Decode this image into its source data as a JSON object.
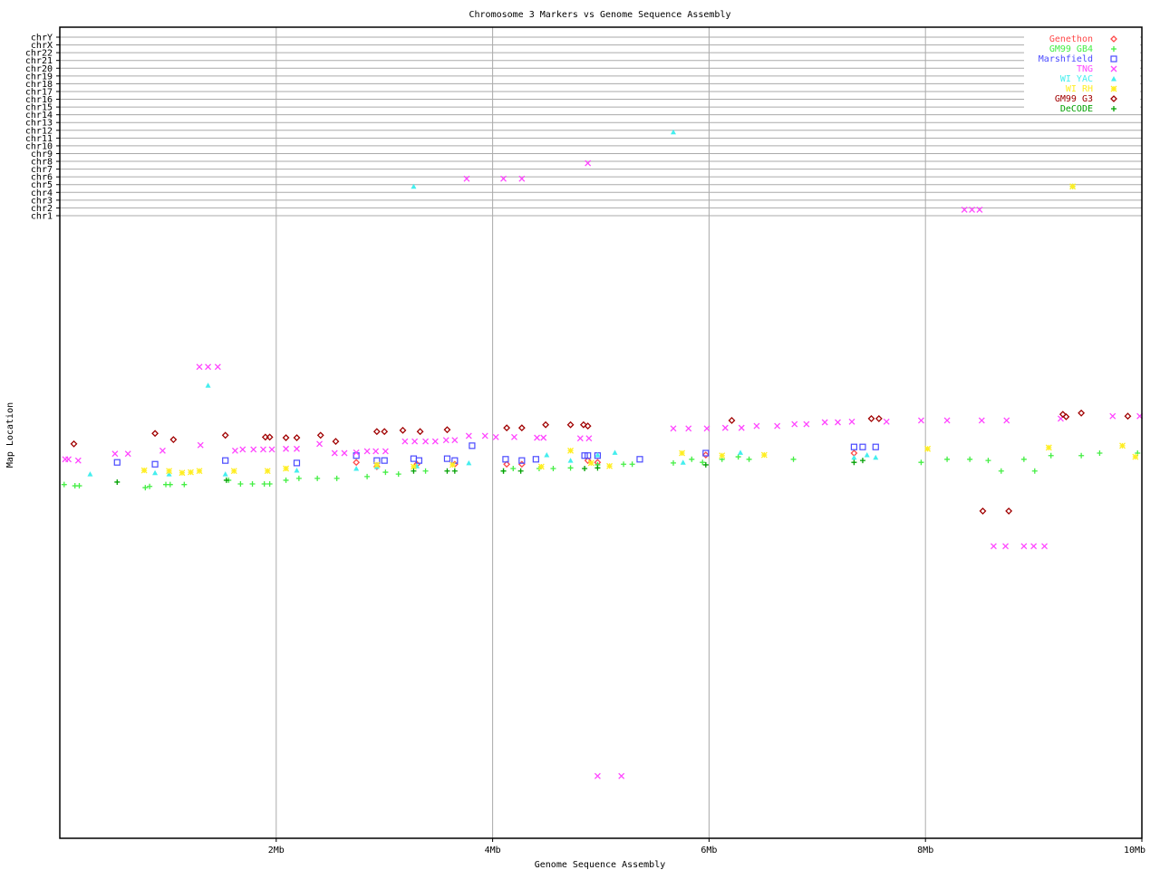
{
  "chart_data": {
    "type": "scatter",
    "title": "Chromosome 3 Markers vs Genome Sequence Assembly",
    "xlabel": "Genome Sequence Assembly",
    "ylabel": "Map Location",
    "xlim": [
      0,
      10
    ],
    "x_ticks": [
      {
        "value": 2,
        "label": "2Mb"
      },
      {
        "value": 4,
        "label": "4Mb"
      },
      {
        "value": 6,
        "label": "6Mb"
      },
      {
        "value": 8,
        "label": "8Mb"
      },
      {
        "value": 10,
        "label": "10Mb"
      }
    ],
    "chromosome_labels": [
      "chrY",
      "chrX",
      "chr22",
      "chr21",
      "chr20",
      "chr19",
      "chr18",
      "chr17",
      "chr16",
      "chr15",
      "chr14",
      "chr13",
      "chr12",
      "chr11",
      "chr10",
      "chr9",
      "chr8",
      "chr7",
      "chr6",
      "chr5",
      "chr4",
      "chr3",
      "chr2",
      "chr1"
    ],
    "grid": true,
    "legend_position": "top-right",
    "series": [
      {
        "name": "Genethon",
        "marker": "diamond",
        "color": "#ff4a4a",
        "points": [
          [
            2.74,
            39.0
          ],
          [
            2.93,
            39.7
          ],
          [
            3.3,
            39.3
          ],
          [
            3.65,
            39.3
          ],
          [
            4.13,
            39.3
          ],
          [
            4.27,
            39.3
          ],
          [
            4.88,
            38.7
          ],
          [
            4.97,
            39.0
          ],
          [
            5.97,
            37.8
          ],
          [
            7.34,
            37.5
          ]
        ]
      },
      {
        "name": "GM99 GB4",
        "marker": "plus",
        "color": "#44ee44",
        "points": [
          [
            0.04,
            42.6
          ],
          [
            0.14,
            42.8
          ],
          [
            0.18,
            42.8
          ],
          [
            0.79,
            43.1
          ],
          [
            0.83,
            42.9
          ],
          [
            0.98,
            42.6
          ],
          [
            1.02,
            42.6
          ],
          [
            1.15,
            42.6
          ],
          [
            1.56,
            41.9
          ],
          [
            1.67,
            42.5
          ],
          [
            1.78,
            42.5
          ],
          [
            1.89,
            42.5
          ],
          [
            1.94,
            42.5
          ],
          [
            2.09,
            41.9
          ],
          [
            2.21,
            41.6
          ],
          [
            2.38,
            41.6
          ],
          [
            2.56,
            41.6
          ],
          [
            2.84,
            41.3
          ],
          [
            3.01,
            40.6
          ],
          [
            3.13,
            40.9
          ],
          [
            3.38,
            40.4
          ],
          [
            4.1,
            40.4
          ],
          [
            4.19,
            40.0
          ],
          [
            4.43,
            40.0
          ],
          [
            4.56,
            40.0
          ],
          [
            4.72,
            39.9
          ],
          [
            4.97,
            39.4
          ],
          [
            5.21,
            39.3
          ],
          [
            5.29,
            39.3
          ],
          [
            5.67,
            39.1
          ],
          [
            5.84,
            38.5
          ],
          [
            5.94,
            39.0
          ],
          [
            6.12,
            38.5
          ],
          [
            6.27,
            38.1
          ],
          [
            6.37,
            38.5
          ],
          [
            6.78,
            38.5
          ],
          [
            7.96,
            39.0
          ],
          [
            8.2,
            38.5
          ],
          [
            8.41,
            38.5
          ],
          [
            8.58,
            38.7
          ],
          [
            8.7,
            40.4
          ],
          [
            8.91,
            38.5
          ],
          [
            9.01,
            40.4
          ],
          [
            9.16,
            37.9
          ],
          [
            9.44,
            37.9
          ],
          [
            9.61,
            37.5
          ],
          [
            9.96,
            37.5
          ]
        ],
        "offchrom": [
          [
            9.36,
            "chr5"
          ]
        ]
      },
      {
        "name": "Marshfield",
        "marker": "square",
        "color": "#4a4aff",
        "points": [
          [
            0.53,
            39.0
          ],
          [
            0.88,
            39.3
          ],
          [
            1.53,
            38.7
          ],
          [
            2.19,
            39.1
          ],
          [
            2.74,
            37.9
          ],
          [
            2.93,
            38.7
          ],
          [
            3.0,
            38.7
          ],
          [
            3.27,
            38.4
          ],
          [
            3.32,
            38.7
          ],
          [
            3.58,
            38.4
          ],
          [
            3.65,
            38.7
          ],
          [
            3.81,
            36.3
          ],
          [
            4.12,
            38.5
          ],
          [
            4.27,
            38.7
          ],
          [
            4.4,
            38.5
          ],
          [
            4.85,
            37.9
          ],
          [
            4.88,
            37.9
          ],
          [
            4.97,
            37.9
          ],
          [
            5.36,
            38.5
          ],
          [
            5.97,
            37.5
          ],
          [
            7.34,
            36.5
          ],
          [
            7.42,
            36.5
          ],
          [
            7.54,
            36.5
          ]
        ]
      },
      {
        "name": "TNG",
        "marker": "x",
        "color": "#ff44ff",
        "points": [
          [
            0.05,
            38.5
          ],
          [
            0.08,
            38.5
          ],
          [
            0.17,
            38.7
          ],
          [
            0.51,
            37.6
          ],
          [
            0.63,
            37.6
          ],
          [
            1.29,
            23.5
          ],
          [
            1.37,
            23.5
          ],
          [
            1.46,
            23.5
          ],
          [
            0.95,
            37.1
          ],
          [
            1.3,
            36.2
          ],
          [
            1.62,
            37.1
          ],
          [
            1.69,
            36.9
          ],
          [
            1.79,
            36.9
          ],
          [
            1.88,
            36.9
          ],
          [
            1.96,
            36.9
          ],
          [
            2.09,
            36.8
          ],
          [
            2.19,
            36.8
          ],
          [
            2.4,
            36.0
          ],
          [
            2.54,
            37.5
          ],
          [
            2.63,
            37.5
          ],
          [
            2.74,
            37.4
          ],
          [
            2.84,
            37.2
          ],
          [
            2.92,
            37.2
          ],
          [
            3.01,
            37.2
          ],
          [
            3.19,
            35.6
          ],
          [
            3.28,
            35.6
          ],
          [
            3.38,
            35.6
          ],
          [
            3.47,
            35.6
          ],
          [
            3.57,
            35.4
          ],
          [
            3.65,
            35.4
          ],
          [
            3.78,
            34.7
          ],
          [
            3.93,
            34.7
          ],
          [
            4.03,
            34.9
          ],
          [
            4.2,
            34.9
          ],
          [
            4.41,
            35.0
          ],
          [
            4.47,
            35.0
          ],
          [
            4.81,
            35.1
          ],
          [
            4.89,
            35.1
          ],
          [
            5.67,
            33.5
          ],
          [
            5.81,
            33.5
          ],
          [
            5.98,
            33.5
          ],
          [
            6.15,
            33.4
          ],
          [
            6.3,
            33.4
          ],
          [
            6.44,
            33.1
          ],
          [
            6.63,
            33.1
          ],
          [
            6.79,
            32.8
          ],
          [
            6.9,
            32.8
          ],
          [
            7.07,
            32.5
          ],
          [
            7.19,
            32.5
          ],
          [
            7.32,
            32.4
          ],
          [
            7.64,
            32.4
          ],
          [
            7.96,
            32.2
          ],
          [
            8.2,
            32.2
          ],
          [
            8.52,
            32.2
          ],
          [
            8.75,
            32.2
          ],
          [
            9.25,
            31.9
          ],
          [
            9.73,
            31.5
          ],
          [
            9.98,
            31.5
          ],
          [
            8.63,
            52.6
          ],
          [
            8.74,
            52.6
          ],
          [
            8.91,
            52.6
          ],
          [
            9.0,
            52.6
          ],
          [
            9.1,
            52.6
          ],
          [
            4.97,
            89.9
          ],
          [
            5.19,
            89.9
          ]
        ],
        "offchrom": [
          [
            4.88,
            "chr8"
          ],
          [
            3.76,
            "chr6"
          ],
          [
            4.1,
            "chr6"
          ],
          [
            4.27,
            "chr6"
          ],
          [
            8.36,
            "chr2"
          ],
          [
            8.43,
            "chr2"
          ],
          [
            8.5,
            "chr2"
          ]
        ]
      },
      {
        "name": "WI YAC",
        "marker": "triangle",
        "color": "#44eeee",
        "points": [
          [
            0.28,
            40.9
          ],
          [
            0.88,
            40.7
          ],
          [
            1.01,
            40.9
          ],
          [
            1.37,
            26.5
          ],
          [
            1.53,
            40.9
          ],
          [
            2.19,
            40.3
          ],
          [
            2.74,
            40.0
          ],
          [
            2.93,
            39.7
          ],
          [
            3.3,
            39.6
          ],
          [
            3.78,
            39.1
          ],
          [
            4.5,
            37.8
          ],
          [
            4.72,
            38.7
          ],
          [
            4.97,
            37.8
          ],
          [
            5.13,
            37.4
          ],
          [
            5.76,
            39.0
          ],
          [
            6.29,
            37.4
          ],
          [
            7.34,
            38.2
          ],
          [
            7.46,
            37.8
          ],
          [
            7.54,
            38.2
          ]
        ],
        "offchrom": [
          [
            3.27,
            "chr5"
          ],
          [
            5.67,
            "chr12"
          ]
        ]
      },
      {
        "name": "WI RH",
        "marker": "asterisk",
        "color": "#ffee22",
        "points": [
          [
            0.78,
            40.3
          ],
          [
            1.01,
            40.4
          ],
          [
            1.13,
            40.7
          ],
          [
            1.21,
            40.6
          ],
          [
            1.29,
            40.4
          ],
          [
            1.61,
            40.4
          ],
          [
            1.92,
            40.4
          ],
          [
            2.09,
            40.0
          ],
          [
            2.93,
            39.4
          ],
          [
            3.27,
            39.7
          ],
          [
            3.63,
            39.4
          ],
          [
            4.45,
            39.7
          ],
          [
            4.72,
            37.1
          ],
          [
            4.91,
            39.1
          ],
          [
            5.08,
            39.6
          ],
          [
            5.75,
            37.5
          ],
          [
            6.12,
            37.9
          ],
          [
            6.51,
            37.8
          ],
          [
            8.02,
            36.8
          ],
          [
            9.14,
            36.6
          ],
          [
            9.82,
            36.3
          ],
          [
            9.94,
            38.1
          ]
        ],
        "offchrom": [
          [
            9.36,
            "chr5"
          ]
        ]
      },
      {
        "name": "GM99 G3",
        "marker": "diamond",
        "color": "#a00000",
        "points": [
          [
            0.13,
            36.0
          ],
          [
            0.88,
            34.3
          ],
          [
            1.05,
            35.3
          ],
          [
            1.53,
            34.6
          ],
          [
            1.9,
            34.9
          ],
          [
            1.94,
            34.9
          ],
          [
            2.09,
            35.0
          ],
          [
            2.19,
            35.0
          ],
          [
            2.41,
            34.6
          ],
          [
            2.55,
            35.6
          ],
          [
            2.93,
            34.0
          ],
          [
            3.0,
            34.0
          ],
          [
            3.17,
            33.8
          ],
          [
            3.33,
            34.0
          ],
          [
            3.58,
            33.7
          ],
          [
            4.13,
            33.4
          ],
          [
            4.27,
            33.4
          ],
          [
            4.49,
            32.9
          ],
          [
            4.72,
            32.9
          ],
          [
            4.84,
            32.9
          ],
          [
            4.88,
            33.1
          ],
          [
            6.21,
            32.2
          ],
          [
            7.5,
            31.9
          ],
          [
            7.57,
            31.9
          ],
          [
            9.27,
            31.2
          ],
          [
            9.3,
            31.6
          ],
          [
            9.44,
            31.0
          ],
          [
            9.87,
            31.5
          ],
          [
            8.53,
            46.9
          ],
          [
            8.77,
            46.9
          ]
        ]
      },
      {
        "name": "DeCODE",
        "marker": "plus",
        "color": "#00a000",
        "points": [
          [
            0.53,
            42.2
          ],
          [
            1.54,
            41.9
          ],
          [
            3.27,
            40.4
          ],
          [
            3.58,
            40.4
          ],
          [
            3.65,
            40.4
          ],
          [
            4.1,
            40.4
          ],
          [
            4.26,
            40.4
          ],
          [
            4.85,
            40.0
          ],
          [
            4.97,
            39.9
          ],
          [
            5.97,
            39.4
          ],
          [
            7.34,
            39.0
          ],
          [
            7.42,
            38.7
          ]
        ]
      }
    ]
  }
}
